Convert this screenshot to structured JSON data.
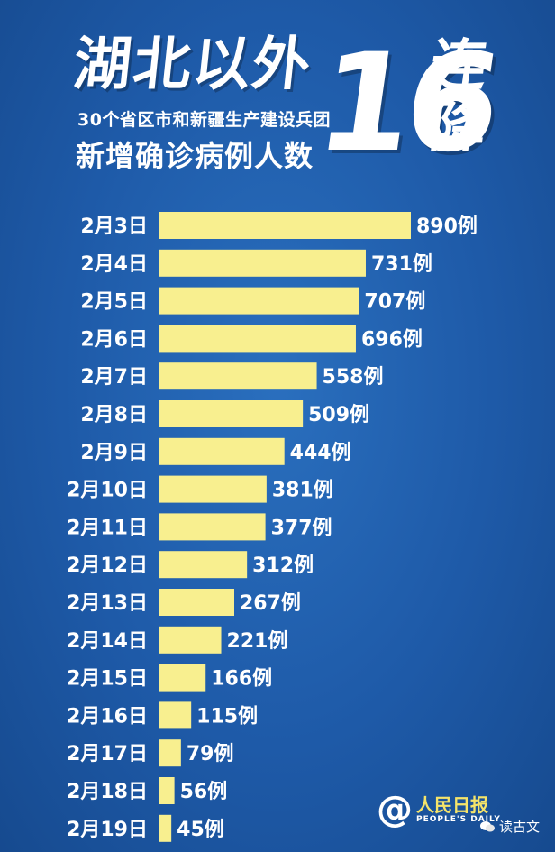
{
  "header": {
    "title": "湖北以外",
    "subtitle_line1": "30个省区市和新疆生产建设兵团",
    "subtitle_line2": "新增确诊病例人数",
    "big_number": "16",
    "lian": "连",
    "jiang": "降"
  },
  "chart_data": {
    "type": "bar",
    "orientation": "horizontal",
    "categories": [
      "2月3日",
      "2月4日",
      "2月5日",
      "2月6日",
      "2月7日",
      "2月8日",
      "2月9日",
      "2月10日",
      "2月11日",
      "2月12日",
      "2月13日",
      "2月14日",
      "2月15日",
      "2月16日",
      "2月17日",
      "2月18日",
      "2月19日"
    ],
    "values": [
      890,
      731,
      707,
      696,
      558,
      509,
      444,
      381,
      377,
      312,
      267,
      221,
      166,
      115,
      79,
      56,
      45
    ],
    "value_suffix": "例",
    "bar_color": "#f8ef8f",
    "label_color": "#ffffff"
  },
  "footer": {
    "logo_at": "@",
    "logo_name": "人民日报",
    "logo_en": "PEOPLE'S DAILY",
    "watermark": "读古文"
  }
}
